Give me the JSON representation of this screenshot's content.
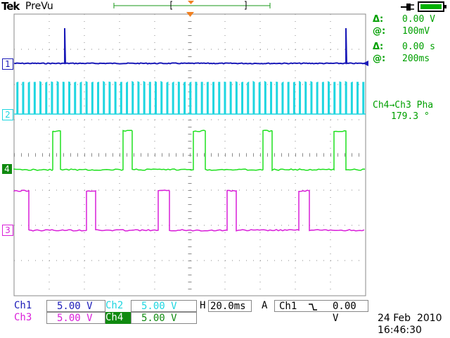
{
  "header": {
    "brand": "Tek",
    "mode": "PreVu"
  },
  "colors": {
    "ch1": "#1a1ab8",
    "ch2": "#1ed6e0",
    "ch3": "#d91ed9",
    "ch4": "#1ee01e",
    "grid": "#8a8a8a",
    "readout": "#00a000",
    "trigger": "#f08020"
  },
  "readouts": {
    "voltage_delta_label": "Δ:",
    "voltage_delta_value": "0.00 V",
    "voltage_at_label": "@:",
    "voltage_at_value": "100mV",
    "time_delta_label": "Δ:",
    "time_delta_value": "0.00 s",
    "time_at_label": "@:",
    "time_at_value": "200ms",
    "measurement_label": "Ch4→Ch3 Pha",
    "measurement_value": "179.3 °"
  },
  "channel_markers": {
    "ch1": "1",
    "ch2": "2",
    "ch4": "4",
    "ch3": "3"
  },
  "status": {
    "ch1_label": "Ch1",
    "ch1_scale": "5.00 V",
    "ch2_label": "Ch2",
    "ch2_scale": "5.00 V",
    "ch3_label": "Ch3",
    "ch3_scale": "5.00 V",
    "ch4_label": "Ch4",
    "ch4_scale": "5.00 V",
    "timebase_prefix": "H",
    "timebase": "20.0ms",
    "trigger_mode": "A",
    "trigger_source": "Ch1",
    "trigger_slope_icon": "falling-edge-icon",
    "trigger_level": "0.00 V",
    "date": "24 Feb  2010",
    "time": "16:46:30"
  },
  "icons": {
    "power": "ac-plug-icon",
    "battery": "battery-icon",
    "trigger_pos": "trigger-position-icon"
  }
}
